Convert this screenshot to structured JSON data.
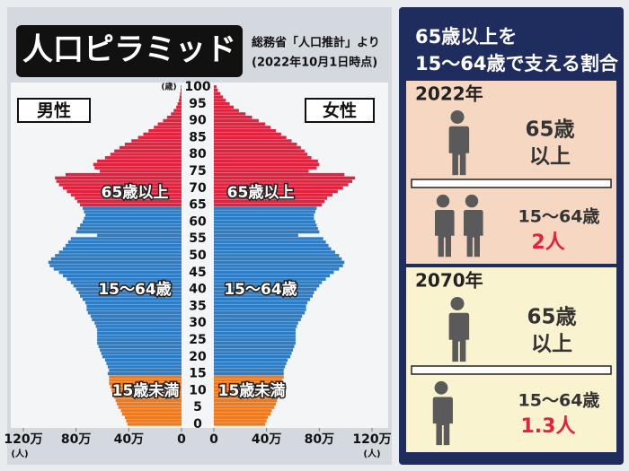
{
  "chart_data": {
    "type": "pyramid",
    "title": "人口ピラミッド",
    "source": "総務省「人口推計」より",
    "date_note": "(2022年10月1日時点)",
    "left_label": "男性",
    "right_label": "女性",
    "ylabel": "(歳)",
    "xlabel": "(人)",
    "ylim": [
      0,
      100
    ],
    "yticks": [
      0,
      5,
      10,
      15,
      20,
      25,
      30,
      35,
      40,
      45,
      50,
      55,
      60,
      65,
      70,
      75,
      80,
      85,
      90,
      95,
      100
    ],
    "xlim": [
      0,
      120
    ],
    "xticks": [
      0,
      {
        "value": 40,
        "label": "40万"
      },
      {
        "value": 80,
        "label": "80万"
      },
      {
        "value": 120,
        "label": "120万"
      }
    ],
    "groups": [
      {
        "name": "15歳未満",
        "color": "#ee7a1f",
        "ages": [
          0,
          1,
          2,
          3,
          4,
          5,
          6,
          7,
          8,
          9,
          10,
          11,
          12,
          13,
          14
        ],
        "male": [
          41,
          42,
          43,
          45,
          46,
          48,
          49,
          50,
          51,
          52,
          53,
          54,
          55,
          55,
          55
        ],
        "female": [
          39,
          40,
          41,
          43,
          44,
          46,
          47,
          48,
          49,
          50,
          50,
          51,
          52,
          52,
          53
        ]
      },
      {
        "name": "15～64歳",
        "color": "#2e7cc4",
        "ages": [
          15,
          16,
          17,
          18,
          19,
          20,
          21,
          22,
          23,
          24,
          25,
          26,
          27,
          28,
          29,
          30,
          31,
          32,
          33,
          34,
          35,
          36,
          37,
          38,
          39,
          40,
          41,
          42,
          43,
          44,
          45,
          46,
          47,
          48,
          49,
          50,
          51,
          52,
          53,
          54,
          55,
          56,
          57,
          58,
          59,
          60,
          61,
          62,
          63,
          64
        ],
        "male": [
          56,
          55,
          56,
          57,
          58,
          60,
          61,
          62,
          63,
          64,
          64,
          64,
          64,
          64,
          65,
          66,
          68,
          69,
          71,
          72,
          72,
          73,
          75,
          77,
          78,
          80,
          82,
          84,
          87,
          90,
          93,
          97,
          100,
          101,
          99,
          96,
          93,
          90,
          88,
          86,
          84,
          64,
          80,
          79,
          77,
          75,
          74,
          73,
          74,
          75
        ],
        "female": [
          53,
          53,
          54,
          55,
          56,
          58,
          59,
          60,
          61,
          62,
          62,
          62,
          62,
          62,
          63,
          64,
          66,
          67,
          69,
          70,
          70,
          71,
          73,
          75,
          76,
          78,
          80,
          82,
          85,
          88,
          91,
          95,
          98,
          99,
          97,
          95,
          92,
          89,
          87,
          85,
          83,
          64,
          80,
          79,
          78,
          77,
          76,
          76,
          77,
          78
        ]
      },
      {
        "name": "65歳以上",
        "color": "#e0233f",
        "ages": [
          65,
          66,
          67,
          68,
          69,
          70,
          71,
          72,
          73,
          74,
          75,
          76,
          77,
          78,
          79,
          80,
          81,
          82,
          83,
          84,
          85,
          86,
          87,
          88,
          89,
          90,
          91,
          92,
          93,
          94,
          95,
          96,
          97,
          98,
          99,
          100
        ],
        "male": [
          77,
          79,
          81,
          84,
          87,
          90,
          93,
          95,
          96,
          88,
          62,
          66,
          67,
          64,
          58,
          54,
          51,
          47,
          43,
          38,
          33,
          29,
          25,
          21,
          18,
          14,
          11,
          8,
          6,
          4,
          3,
          2,
          1.5,
          1,
          0.7,
          0.5
        ],
        "female": [
          82,
          84,
          86,
          90,
          94,
          98,
          102,
          105,
          107,
          99,
          72,
          78,
          80,
          79,
          74,
          71,
          69,
          66,
          63,
          59,
          55,
          51,
          47,
          43,
          39,
          34,
          29,
          24,
          19,
          15,
          12,
          9,
          7,
          5,
          3,
          2
        ]
      }
    ]
  },
  "side_panel": {
    "title": [
      "65歳以上を",
      "15～64歳で支える割合"
    ],
    "sections": [
      {
        "year": "2022年",
        "top_label": [
          "65歳",
          "以上"
        ],
        "bottom_label": "15～64歳",
        "ratio": "2人"
      },
      {
        "year": "2070年",
        "top_label": [
          "65歳",
          "以上"
        ],
        "bottom_label": "15～64歳",
        "ratio": "1.3人"
      }
    ]
  }
}
